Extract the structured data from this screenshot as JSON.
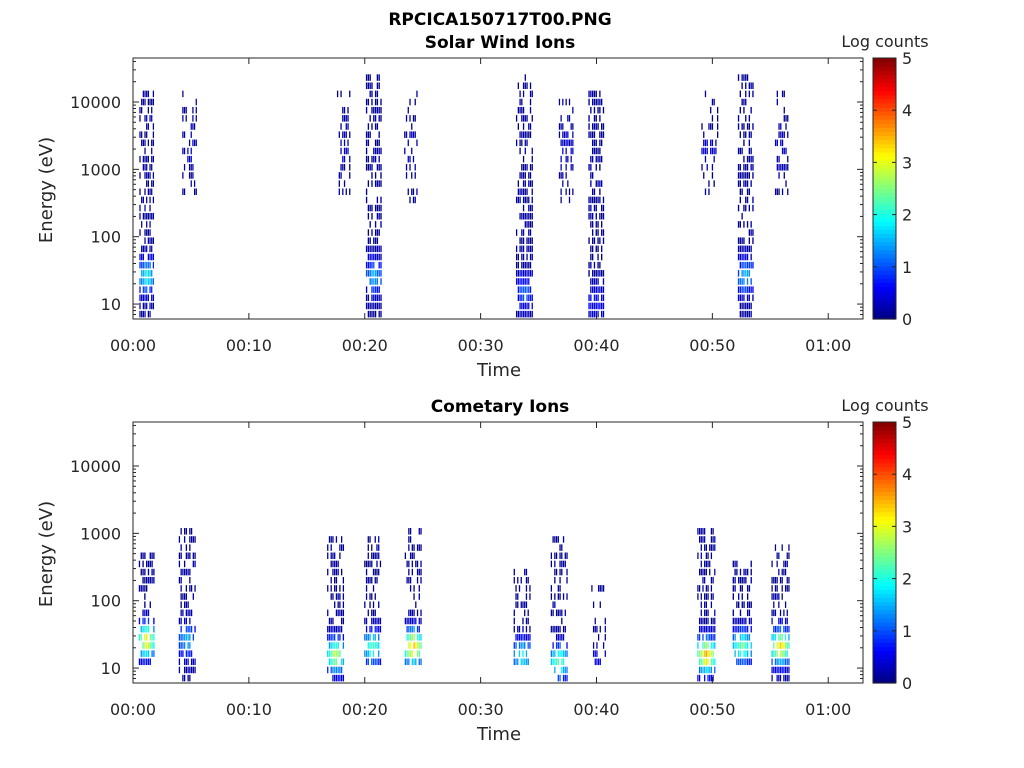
{
  "figure_title": "RPCICA150717T00.PNG",
  "chart_data": [
    {
      "type": "heatmap",
      "title": "Solar Wind Ions",
      "xlabel": "Time",
      "ylabel": "Energy (eV)",
      "x_scale": "time (minutes)",
      "xlim": [
        "00:00",
        "01:03"
      ],
      "xticks": [
        "00:00",
        "00:10",
        "00:20",
        "00:30",
        "00:40",
        "00:50",
        "01:00"
      ],
      "y_scale": "log",
      "ylim": [
        6,
        45000
      ],
      "yticks": [
        "10",
        "100",
        "1000",
        "10000"
      ],
      "colorbar": {
        "label": "Log counts",
        "range": [
          0,
          5
        ],
        "ticks": [
          "0",
          "1",
          "2",
          "3",
          "4",
          "5"
        ],
        "colormap": "jet"
      },
      "bursts": [
        {
          "minute": 1.2,
          "width_min": 1.3,
          "emin_ev": 6,
          "emax_ev": 15000,
          "peak_ev": 25,
          "peak_log": 1.8,
          "density": 0.55
        },
        {
          "minute": 4.9,
          "width_min": 1.3,
          "emin_ev": 350,
          "emax_ev": 14000,
          "peak_ev": 2000,
          "peak_log": 0.3,
          "density": 0.3
        },
        {
          "minute": 20.8,
          "width_min": 1.4,
          "emin_ev": 6,
          "emax_ev": 25000,
          "peak_ev": 25,
          "peak_log": 1.4,
          "density": 0.55
        },
        {
          "minute": 18.2,
          "width_min": 1.2,
          "emin_ev": 350,
          "emax_ev": 15000,
          "peak_ev": 2000,
          "peak_log": 0.3,
          "density": 0.25
        },
        {
          "minute": 24.0,
          "width_min": 1.2,
          "emin_ev": 300,
          "emax_ev": 14000,
          "peak_ev": 2000,
          "peak_log": 0.3,
          "density": 0.3
        },
        {
          "minute": 33.8,
          "width_min": 1.5,
          "emin_ev": 6,
          "emax_ev": 24000,
          "peak_ev": 15,
          "peak_log": 1.0,
          "density": 0.55
        },
        {
          "minute": 37.4,
          "width_min": 1.3,
          "emin_ev": 300,
          "emax_ev": 12000,
          "peak_ev": 2000,
          "peak_log": 0.3,
          "density": 0.3
        },
        {
          "minute": 40.0,
          "width_min": 1.4,
          "emin_ev": 6,
          "emax_ev": 16000,
          "peak_ev": 10,
          "peak_log": 0.6,
          "density": 0.6
        },
        {
          "minute": 49.8,
          "width_min": 1.5,
          "emin_ev": 300,
          "emax_ev": 14000,
          "peak_ev": 2000,
          "peak_log": 0.3,
          "density": 0.25
        },
        {
          "minute": 52.9,
          "width_min": 1.4,
          "emin_ev": 6,
          "emax_ev": 24000,
          "peak_ev": 25,
          "peak_log": 1.5,
          "density": 0.55
        },
        {
          "minute": 56.0,
          "width_min": 1.2,
          "emin_ev": 350,
          "emax_ev": 14000,
          "peak_ev": 2000,
          "peak_log": 0.3,
          "density": 0.3
        }
      ]
    },
    {
      "type": "heatmap",
      "title": "Cometary Ions",
      "xlabel": "Time",
      "ylabel": "Energy (eV)",
      "x_scale": "time (minutes)",
      "xlim": [
        "00:00",
        "01:03"
      ],
      "xticks": [
        "00:00",
        "00:10",
        "00:20",
        "00:30",
        "00:40",
        "00:50",
        "01:00"
      ],
      "y_scale": "log",
      "ylim": [
        6,
        45000
      ],
      "yticks": [
        "10",
        "100",
        "1000",
        "10000"
      ],
      "colorbar": {
        "label": "Log counts",
        "range": [
          0,
          5
        ],
        "ticks": [
          "0",
          "1",
          "2",
          "3",
          "4",
          "5"
        ],
        "colormap": "jet"
      },
      "bursts": [
        {
          "minute": 1.2,
          "width_min": 1.4,
          "emin_ev": 12,
          "emax_ev": 500,
          "peak_ev": 25,
          "peak_log": 3.2,
          "density": 0.55
        },
        {
          "minute": 4.7,
          "width_min": 1.5,
          "emin_ev": 6,
          "emax_ev": 1100,
          "peak_ev": 25,
          "peak_log": 1.4,
          "density": 0.5
        },
        {
          "minute": 17.5,
          "width_min": 1.5,
          "emin_ev": 6,
          "emax_ev": 900,
          "peak_ev": 15,
          "peak_log": 2.8,
          "density": 0.55
        },
        {
          "minute": 20.7,
          "width_min": 1.5,
          "emin_ev": 10,
          "emax_ev": 900,
          "peak_ev": 20,
          "peak_log": 2.2,
          "density": 0.5
        },
        {
          "minute": 24.2,
          "width_min": 1.5,
          "emin_ev": 10,
          "emax_ev": 1100,
          "peak_ev": 20,
          "peak_log": 3.6,
          "density": 0.55
        },
        {
          "minute": 33.6,
          "width_min": 1.5,
          "emin_ev": 10,
          "emax_ev": 300,
          "peak_ev": 15,
          "peak_log": 1.9,
          "density": 0.5
        },
        {
          "minute": 36.8,
          "width_min": 1.5,
          "emin_ev": 6,
          "emax_ev": 800,
          "peak_ev": 12,
          "peak_log": 2.4,
          "density": 0.5
        },
        {
          "minute": 40.2,
          "width_min": 1.3,
          "emin_ev": 10,
          "emax_ev": 150,
          "peak_ev": 12,
          "peak_log": 0.4,
          "density": 0.3
        },
        {
          "minute": 49.5,
          "width_min": 1.6,
          "emin_ev": 6,
          "emax_ev": 1100,
          "peak_ev": 15,
          "peak_log": 3.5,
          "density": 0.55
        },
        {
          "minute": 52.6,
          "width_min": 1.7,
          "emin_ev": 10,
          "emax_ev": 400,
          "peak_ev": 20,
          "peak_log": 2.4,
          "density": 0.55
        },
        {
          "minute": 55.9,
          "width_min": 1.6,
          "emin_ev": 6,
          "emax_ev": 700,
          "peak_ev": 20,
          "peak_log": 3.3,
          "density": 0.55
        }
      ]
    }
  ]
}
